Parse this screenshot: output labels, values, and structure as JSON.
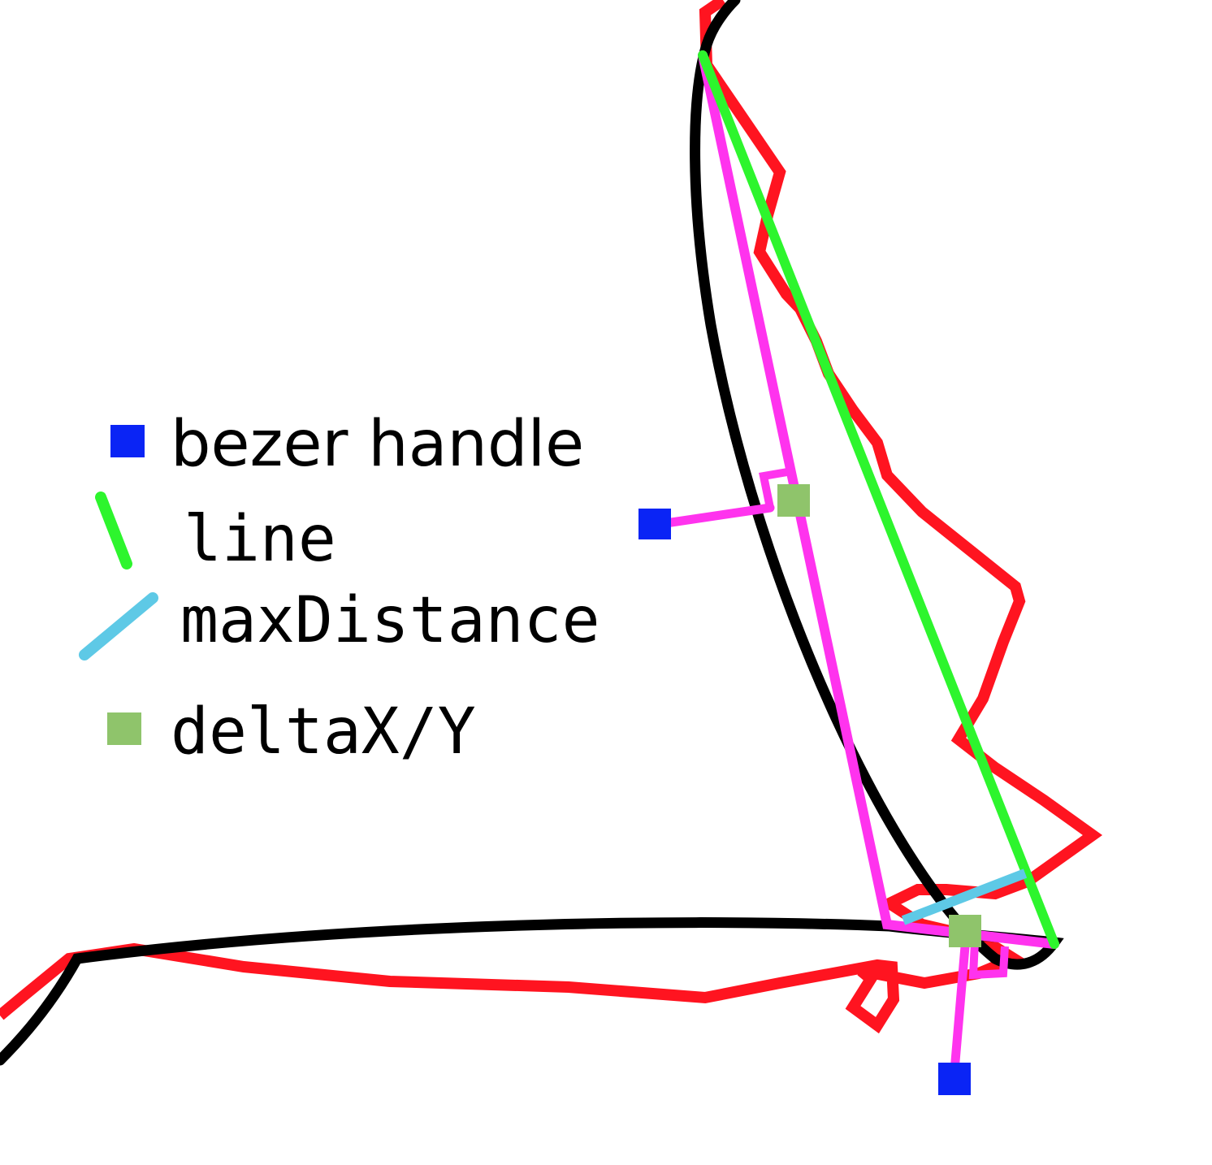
{
  "legend": {
    "items": [
      {
        "label": "bezer handle",
        "marker": "blue-square",
        "color": "#0a24f5"
      },
      {
        "label": "line",
        "marker": "green-line",
        "color": "#2df52d"
      },
      {
        "label": "maxDistance",
        "marker": "cyan-line",
        "color": "#5ec9e6"
      },
      {
        "label": "deltaX/Y",
        "marker": "olive-square",
        "color": "#8fc46b"
      }
    ]
  },
  "colors": {
    "background": "#ffffff",
    "raw_stroke": "#ff1420",
    "fitted_curve": "#000000",
    "bezier_construction": "#ff33ee",
    "bezier_handle": "#0a24f5",
    "chord_line": "#2df52d",
    "max_distance": "#5ec9e6",
    "delta_marker": "#8fc46b"
  }
}
